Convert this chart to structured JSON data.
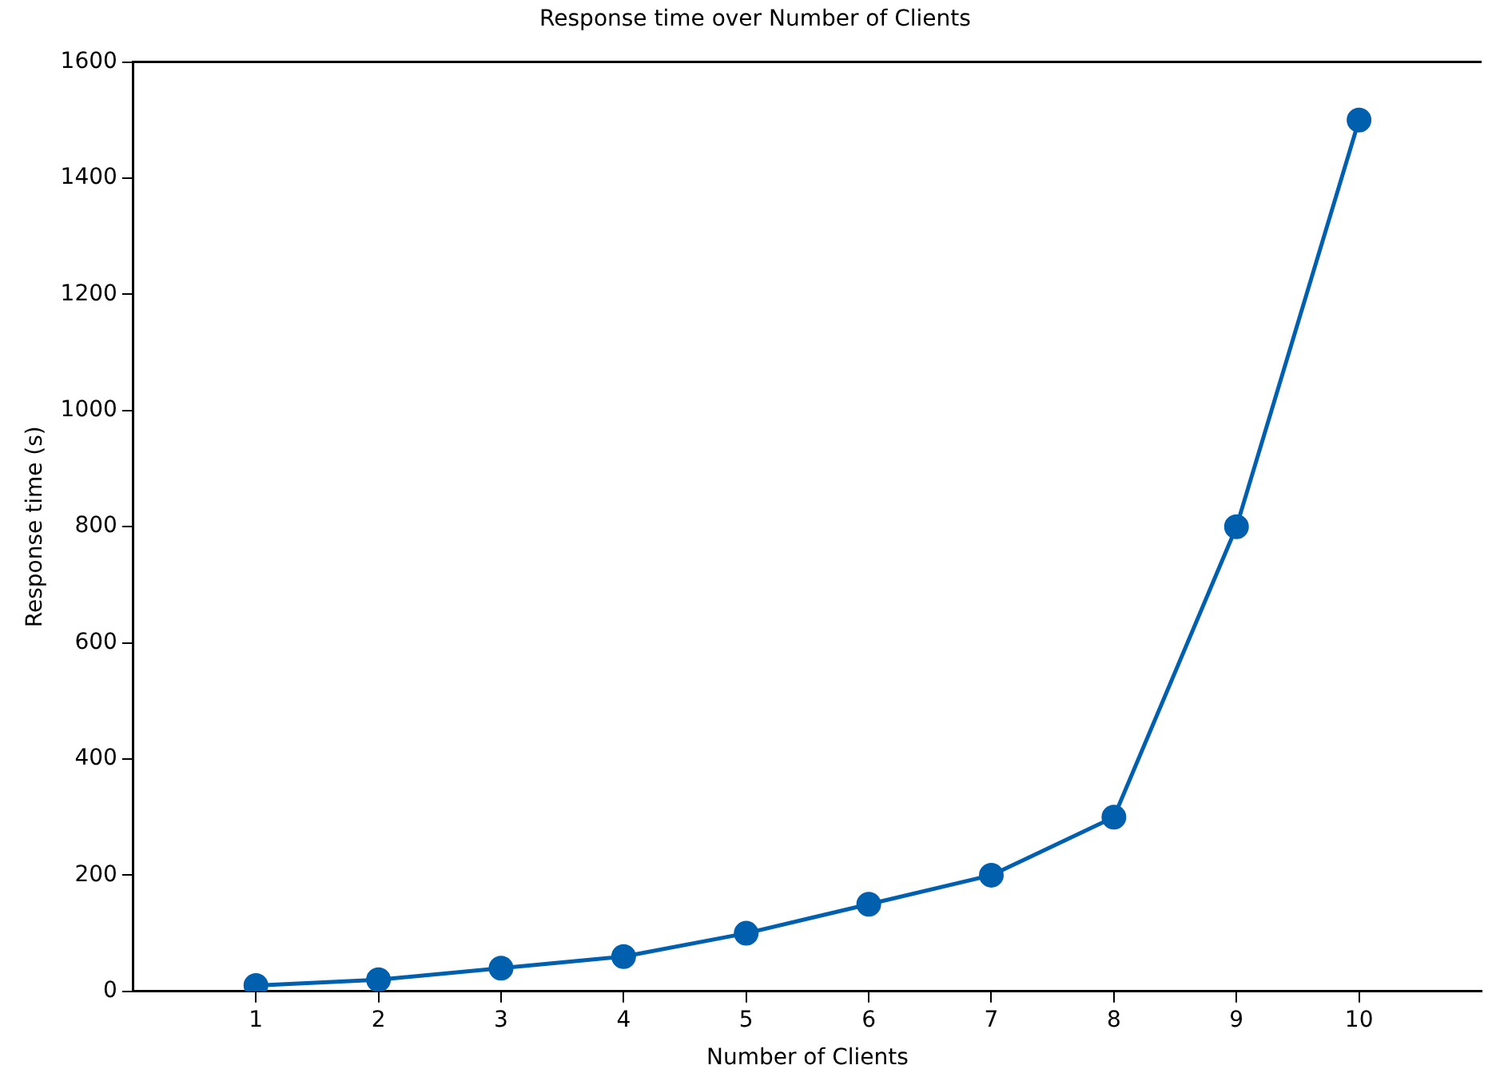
{
  "chart_data": {
    "type": "line",
    "title": "Response time over Number of Clients",
    "xlabel": "Number of Clients",
    "ylabel": "Response time (s)",
    "x": [
      1,
      2,
      3,
      4,
      5,
      6,
      7,
      8,
      9,
      10
    ],
    "series": [
      {
        "color": "#0060ad",
        "values": [
          10,
          20,
          40,
          60,
          100,
          150,
          200,
          300,
          800,
          1500
        ]
      }
    ],
    "xlim": [
      0,
      11
    ],
    "xticks": [
      1,
      2,
      3,
      4,
      5,
      6,
      7,
      8,
      9,
      10
    ],
    "ylim": [
      0,
      1600
    ],
    "yticks": [
      0,
      200,
      400,
      600,
      800,
      1000,
      1200,
      1400,
      1600
    ],
    "grid": false,
    "legend": false,
    "marker": "circle",
    "line_style": "solid"
  }
}
